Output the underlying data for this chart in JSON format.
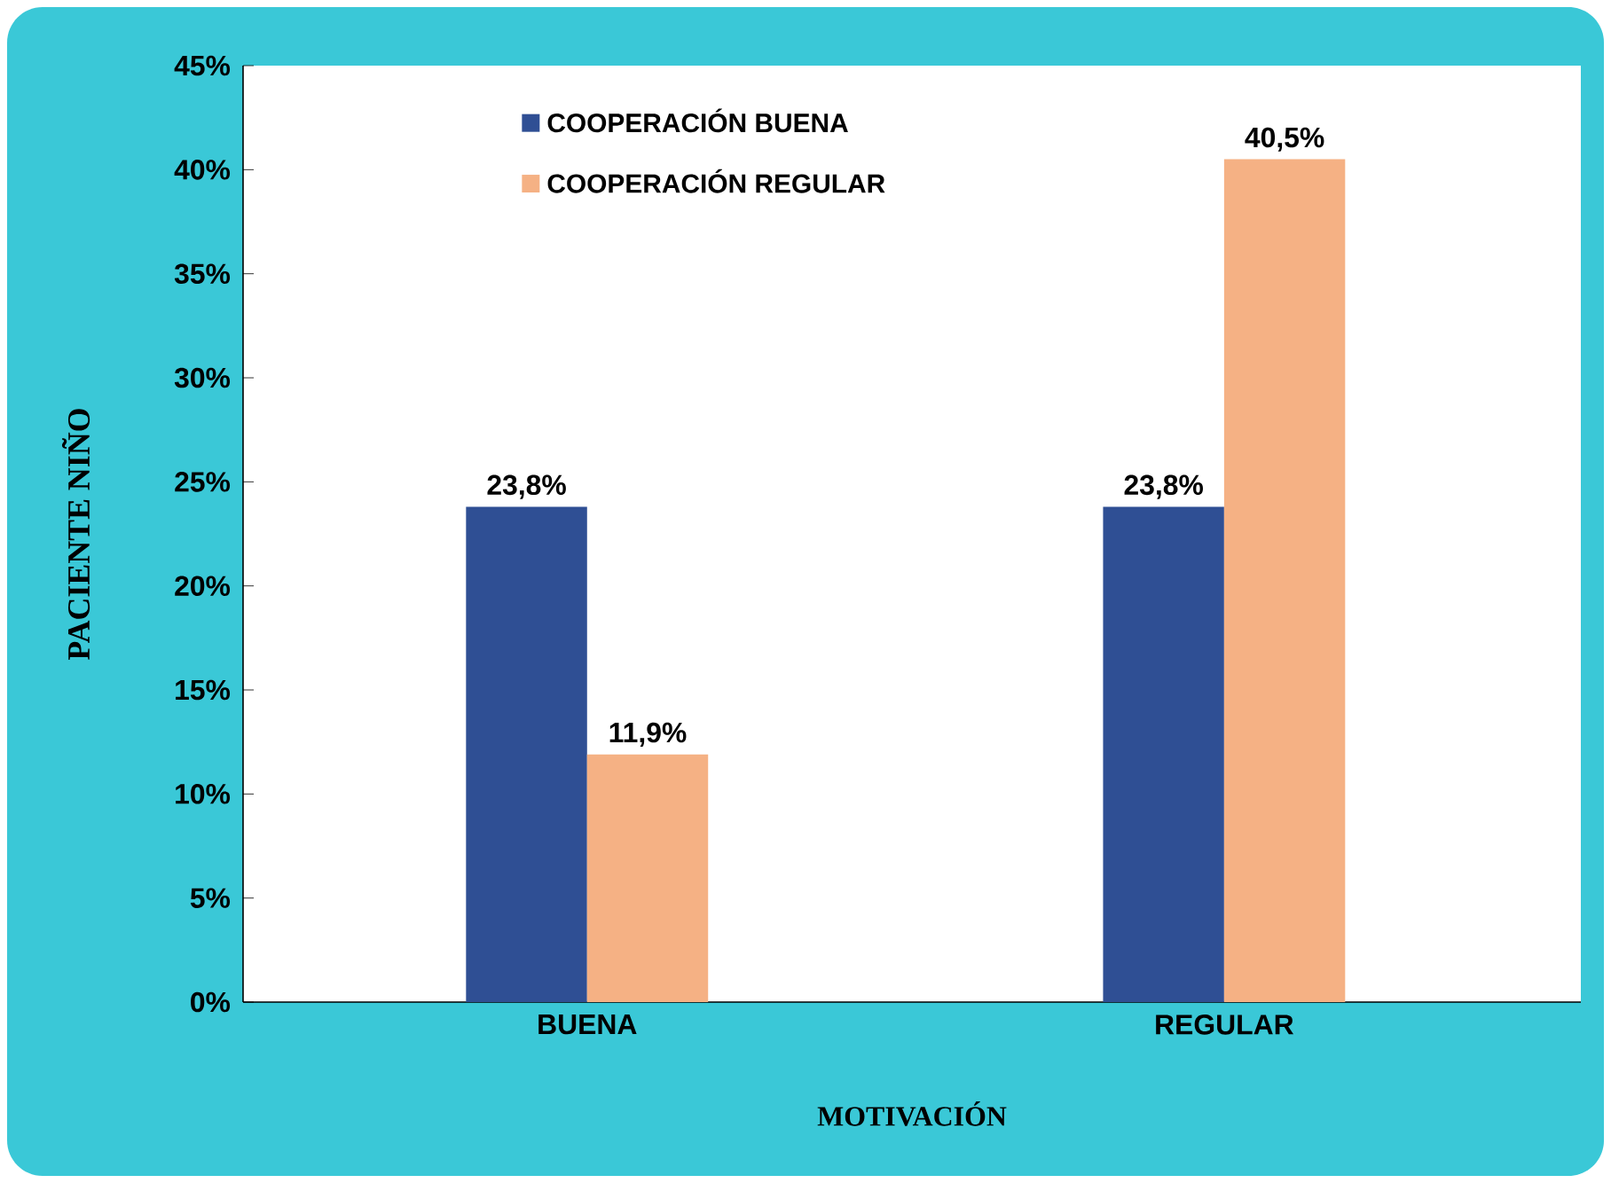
{
  "chart_data": {
    "type": "bar",
    "xlabel": "MOTIVACIÓN",
    "ylabel": "PACIENTE  NIÑO",
    "categories": [
      "BUENA",
      "REGULAR"
    ],
    "series": [
      {
        "name": "COOPERACIÓN BUENA",
        "color": "#2f4f94",
        "values": [
          23.8,
          23.8
        ],
        "value_labels": [
          "23,8%",
          "23,8%"
        ]
      },
      {
        "name": "COOPERACIÓN REGULAR",
        "color": "#f5b184",
        "values": [
          11.9,
          40.5
        ],
        "value_labels": [
          "11,9%",
          "40,5%"
        ]
      }
    ],
    "ylim": [
      0,
      45
    ],
    "yticks": [
      {
        "value": 0,
        "label": "0%"
      },
      {
        "value": 5,
        "label": "5%"
      },
      {
        "value": 10,
        "label": "10%"
      },
      {
        "value": 15,
        "label": "15%"
      },
      {
        "value": 20,
        "label": "20%"
      },
      {
        "value": 25,
        "label": "25%"
      },
      {
        "value": 30,
        "label": "30%"
      },
      {
        "value": 35,
        "label": "35%"
      },
      {
        "value": 40,
        "label": "40%"
      },
      {
        "value": 45,
        "label": "45%"
      }
    ],
    "legend": "top left",
    "grid": false
  }
}
